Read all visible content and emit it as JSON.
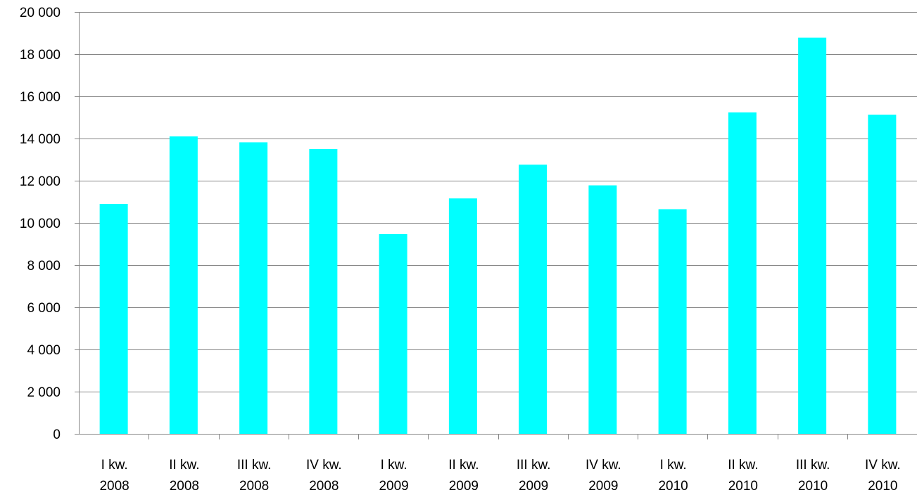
{
  "chart_data": {
    "type": "bar",
    "categories": [
      [
        "I kw.",
        "2008"
      ],
      [
        "II kw.",
        "2008"
      ],
      [
        "III kw.",
        "2008"
      ],
      [
        "IV kw.",
        "2008"
      ],
      [
        "I kw.",
        "2009"
      ],
      [
        "II kw.",
        "2009"
      ],
      [
        "III kw.",
        "2009"
      ],
      [
        "IV kw.",
        "2009"
      ],
      [
        "I kw.",
        "2010"
      ],
      [
        "II kw.",
        "2010"
      ],
      [
        "III kw.",
        "2010"
      ],
      [
        "IV kw.",
        "2010"
      ]
    ],
    "values": [
      10900,
      14100,
      13820,
      13500,
      9470,
      11160,
      12760,
      11780,
      10650,
      15240,
      18780,
      15130
    ],
    "ylim": [
      0,
      20000
    ],
    "yticks": [
      0,
      2000,
      4000,
      6000,
      8000,
      10000,
      12000,
      14000,
      16000,
      18000,
      20000
    ],
    "ytick_labels": [
      "0",
      "2 000",
      "4 000",
      "6 000",
      "8 000",
      "10 000",
      "12 000",
      "14 000",
      "16 000",
      "18 000",
      "20 000"
    ],
    "grid": true,
    "legend": "none",
    "bar_color": "#00FFFF",
    "title": "",
    "xlabel": "",
    "ylabel": ""
  }
}
